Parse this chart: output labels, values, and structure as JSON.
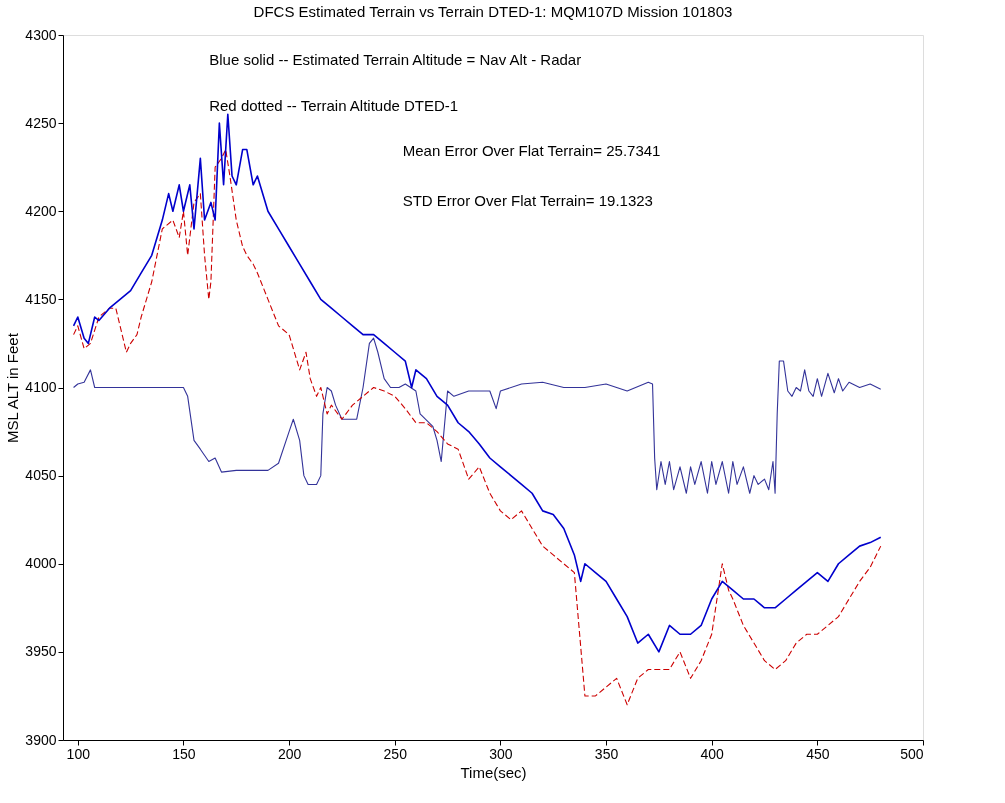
{
  "chart_data": {
    "type": "line",
    "title": "DFCS Estimated Terrain  vs Terrain DTED-1: MQM107D Mission 101803",
    "xlabel": "Time(sec)",
    "ylabel": "MSL ALT in Feet",
    "annotations": [
      "Blue solid -- Estimated Terrain Altitude = Nav Alt - Radar",
      "Red dotted -- Terrain Altitude DTED-1",
      "Mean Error Over Flat Terrain= 25.7341",
      "STD Error Over Flat Terrain= 19.1323"
    ],
    "xlim": [
      93,
      500
    ],
    "xticks": [
      100,
      150,
      200,
      250,
      300,
      350,
      400,
      450,
      500
    ],
    "ylim": [
      3900,
      4300
    ],
    "yticks": [
      3900,
      3950,
      4000,
      4050,
      4100,
      4150,
      4200,
      4250,
      4300
    ],
    "grid": false,
    "series": [
      {
        "color": "#333399",
        "line_style": "solid",
        "x": [
          98,
          100,
          103,
          106,
          108,
          110,
          120,
          140,
          150,
          152,
          155,
          158,
          162,
          165,
          168,
          175,
          190,
          195,
          200,
          202,
          205,
          207,
          209,
          213,
          215,
          216,
          218,
          220,
          222,
          225,
          232,
          235,
          238,
          240,
          242,
          245,
          248,
          252,
          255,
          260,
          262,
          268,
          270,
          272,
          275,
          278,
          285,
          295,
          298,
          300,
          310,
          320,
          330,
          340,
          350,
          360,
          370,
          372,
          373,
          374,
          376,
          378,
          380,
          382,
          385,
          388,
          390,
          392,
          395,
          398,
          400,
          402,
          405,
          408,
          410,
          412,
          415,
          418,
          420,
          422,
          425,
          427,
          429,
          430,
          431,
          432,
          434,
          436,
          438,
          440,
          442,
          444,
          446,
          448,
          450,
          452,
          455,
          458,
          460,
          462,
          465,
          470,
          475,
          480
        ],
        "values": [
          4100,
          4102,
          4103,
          4110,
          4100,
          4100,
          4100,
          4100,
          4100,
          4095,
          4070,
          4065,
          4058,
          4060,
          4052,
          4053,
          4053,
          4057,
          4075,
          4082,
          4070,
          4050,
          4045,
          4045,
          4050,
          4085,
          4100,
          4098,
          4090,
          4082,
          4082,
          4100,
          4125,
          4128,
          4120,
          4105,
          4100,
          4100,
          4102,
          4098,
          4085,
          4078,
          4070,
          4058,
          4098,
          4095,
          4098,
          4098,
          4088,
          4098,
          4102,
          4103,
          4100,
          4100,
          4102,
          4098,
          4103,
          4102,
          4060,
          4042,
          4058,
          4045,
          4058,
          4042,
          4055,
          4040,
          4055,
          4045,
          4058,
          4040,
          4058,
          4045,
          4058,
          4040,
          4058,
          4045,
          4055,
          4040,
          4050,
          4045,
          4048,
          4042,
          4058,
          4040,
          4085,
          4115,
          4115,
          4098,
          4095,
          4100,
          4098,
          4110,
          4098,
          4095,
          4105,
          4095,
          4108,
          4097,
          4105,
          4098,
          4103,
          4100,
          4102,
          4099
        ]
      },
      {
        "color": "#cc0000",
        "line_style": "dashed",
        "x": [
          98,
          100,
          103,
          106,
          110,
          115,
          118,
          120,
          123,
          125,
          128,
          130,
          135,
          140,
          145,
          148,
          150,
          152,
          155,
          158,
          160,
          162,
          163,
          165,
          168,
          170,
          172,
          175,
          178,
          180,
          183,
          185,
          190,
          195,
          200,
          205,
          208,
          210,
          213,
          215,
          218,
          220,
          225,
          230,
          235,
          240,
          245,
          250,
          255,
          260,
          265,
          270,
          275,
          280,
          285,
          290,
          295,
          300,
          305,
          310,
          315,
          320,
          325,
          330,
          335,
          340,
          345,
          350,
          355,
          360,
          365,
          370,
          375,
          380,
          385,
          390,
          395,
          400,
          405,
          408,
          410,
          415,
          420,
          425,
          430,
          435,
          440,
          445,
          450,
          455,
          460,
          465,
          470,
          475,
          480
        ],
        "values": [
          4130,
          4135,
          4122,
          4125,
          4140,
          4145,
          4145,
          4135,
          4120,
          4125,
          4130,
          4140,
          4160,
          4190,
          4195,
          4185,
          4200,
          4175,
          4205,
          4210,
          4175,
          4150,
          4160,
          4225,
          4230,
          4235,
          4220,
          4195,
          4180,
          4175,
          4170,
          4165,
          4150,
          4135,
          4130,
          4110,
          4120,
          4105,
          4095,
          4100,
          4085,
          4090,
          4082,
          4090,
          4095,
          4100,
          4098,
          4095,
          4088,
          4080,
          4080,
          4075,
          4068,
          4065,
          4048,
          4055,
          4040,
          4030,
          4025,
          4030,
          4020,
          4010,
          4005,
          4000,
          3995,
          3925,
          3925,
          3930,
          3935,
          3920,
          3935,
          3940,
          3940,
          3940,
          3950,
          3935,
          3945,
          3960,
          4000,
          3985,
          3980,
          3965,
          3955,
          3945,
          3940,
          3945,
          3955,
          3960,
          3960,
          3965,
          3970,
          3980,
          3990,
          3998,
          4010
        ]
      },
      {
        "color": "#0000cc",
        "line_style": "solid",
        "x": [
          98,
          100,
          103,
          105,
          108,
          110,
          115,
          120,
          125,
          130,
          135,
          140,
          143,
          145,
          148,
          150,
          153,
          155,
          158,
          160,
          163,
          165,
          167,
          169,
          171,
          173,
          175,
          178,
          180,
          183,
          185,
          190,
          195,
          200,
          205,
          210,
          215,
          220,
          225,
          230,
          235,
          240,
          245,
          250,
          255,
          258,
          260,
          265,
          270,
          275,
          280,
          285,
          290,
          295,
          300,
          305,
          310,
          315,
          320,
          325,
          330,
          335,
          338,
          340,
          345,
          350,
          355,
          360,
          365,
          370,
          375,
          380,
          385,
          390,
          395,
          400,
          405,
          410,
          415,
          420,
          425,
          430,
          435,
          440,
          445,
          450,
          455,
          460,
          465,
          470,
          475,
          480
        ],
        "values": [
          4135,
          4140,
          4128,
          4125,
          4140,
          4138,
          4145,
          4150,
          4155,
          4165,
          4175,
          4195,
          4210,
          4200,
          4215,
          4200,
          4215,
          4190,
          4230,
          4195,
          4205,
          4195,
          4250,
          4215,
          4255,
          4220,
          4215,
          4235,
          4235,
          4215,
          4220,
          4200,
          4190,
          4180,
          4170,
          4160,
          4150,
          4145,
          4140,
          4135,
          4130,
          4130,
          4125,
          4120,
          4115,
          4100,
          4110,
          4105,
          4095,
          4090,
          4080,
          4075,
          4068,
          4060,
          4055,
          4050,
          4045,
          4040,
          4030,
          4028,
          4020,
          4005,
          3990,
          4000,
          3995,
          3990,
          3980,
          3970,
          3955,
          3960,
          3950,
          3965,
          3960,
          3960,
          3965,
          3980,
          3990,
          3985,
          3980,
          3980,
          3975,
          3975,
          3980,
          3985,
          3990,
          3995,
          3990,
          4000,
          4005,
          4010,
          4012,
          4015
        ]
      }
    ]
  }
}
